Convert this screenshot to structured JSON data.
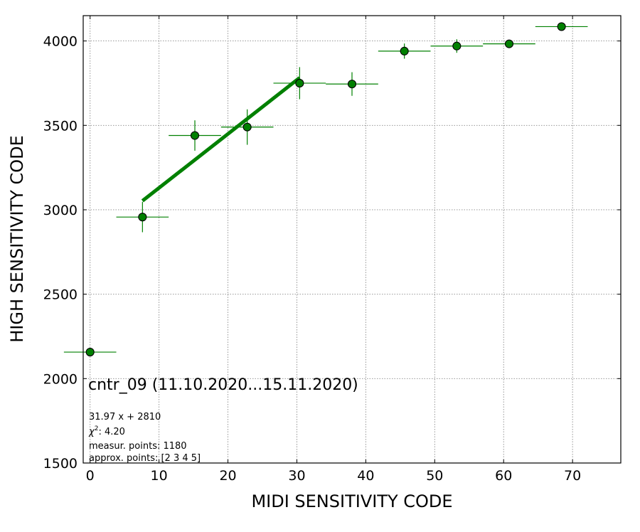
{
  "chart_data": {
    "type": "scatter",
    "xlabel": "MIDI SENSITIVITY CODE",
    "ylabel": "HIGH SENSITIVITY CODE",
    "xlim": [
      -1,
      77
    ],
    "ylim": [
      1500,
      4150
    ],
    "xticks": [
      0,
      10,
      20,
      30,
      40,
      50,
      60,
      70
    ],
    "yticks": [
      1500,
      2000,
      2500,
      3000,
      3500,
      4000
    ],
    "grid": true,
    "point_color": "#008000",
    "points": [
      {
        "x": 0.0,
        "y": 2157,
        "xerr": 3.8,
        "yerr": 0
      },
      {
        "x": 7.6,
        "y": 2957,
        "xerr": 3.8,
        "yerr": 90
      },
      {
        "x": 15.2,
        "y": 3440,
        "xerr": 3.8,
        "yerr": 90
      },
      {
        "x": 22.8,
        "y": 3490,
        "xerr": 3.8,
        "yerr": 105
      },
      {
        "x": 30.4,
        "y": 3750,
        "xerr": 3.8,
        "yerr": 95
      },
      {
        "x": 38.0,
        "y": 3745,
        "xerr": 3.8,
        "yerr": 70
      },
      {
        "x": 45.6,
        "y": 3940,
        "xerr": 3.8,
        "yerr": 45
      },
      {
        "x": 53.2,
        "y": 3970,
        "xerr": 3.8,
        "yerr": 40
      },
      {
        "x": 60.8,
        "y": 3983,
        "xerr": 3.8,
        "yerr": 0
      },
      {
        "x": 68.4,
        "y": 4085,
        "xerr": 3.8,
        "yerr": 0
      }
    ],
    "fit": {
      "slope": 31.97,
      "intercept": 2810,
      "x_range": [
        7.6,
        30.4
      ],
      "color": "#008000"
    },
    "annotations": {
      "title": "cntr_09 (11.10.2020...15.11.2020)",
      "equation": "31.97 x + 2810",
      "chi2_value": ": 4.20",
      "measur": "measur. points: 1180",
      "approx": "approx. points: [2 3 4 5]"
    }
  }
}
